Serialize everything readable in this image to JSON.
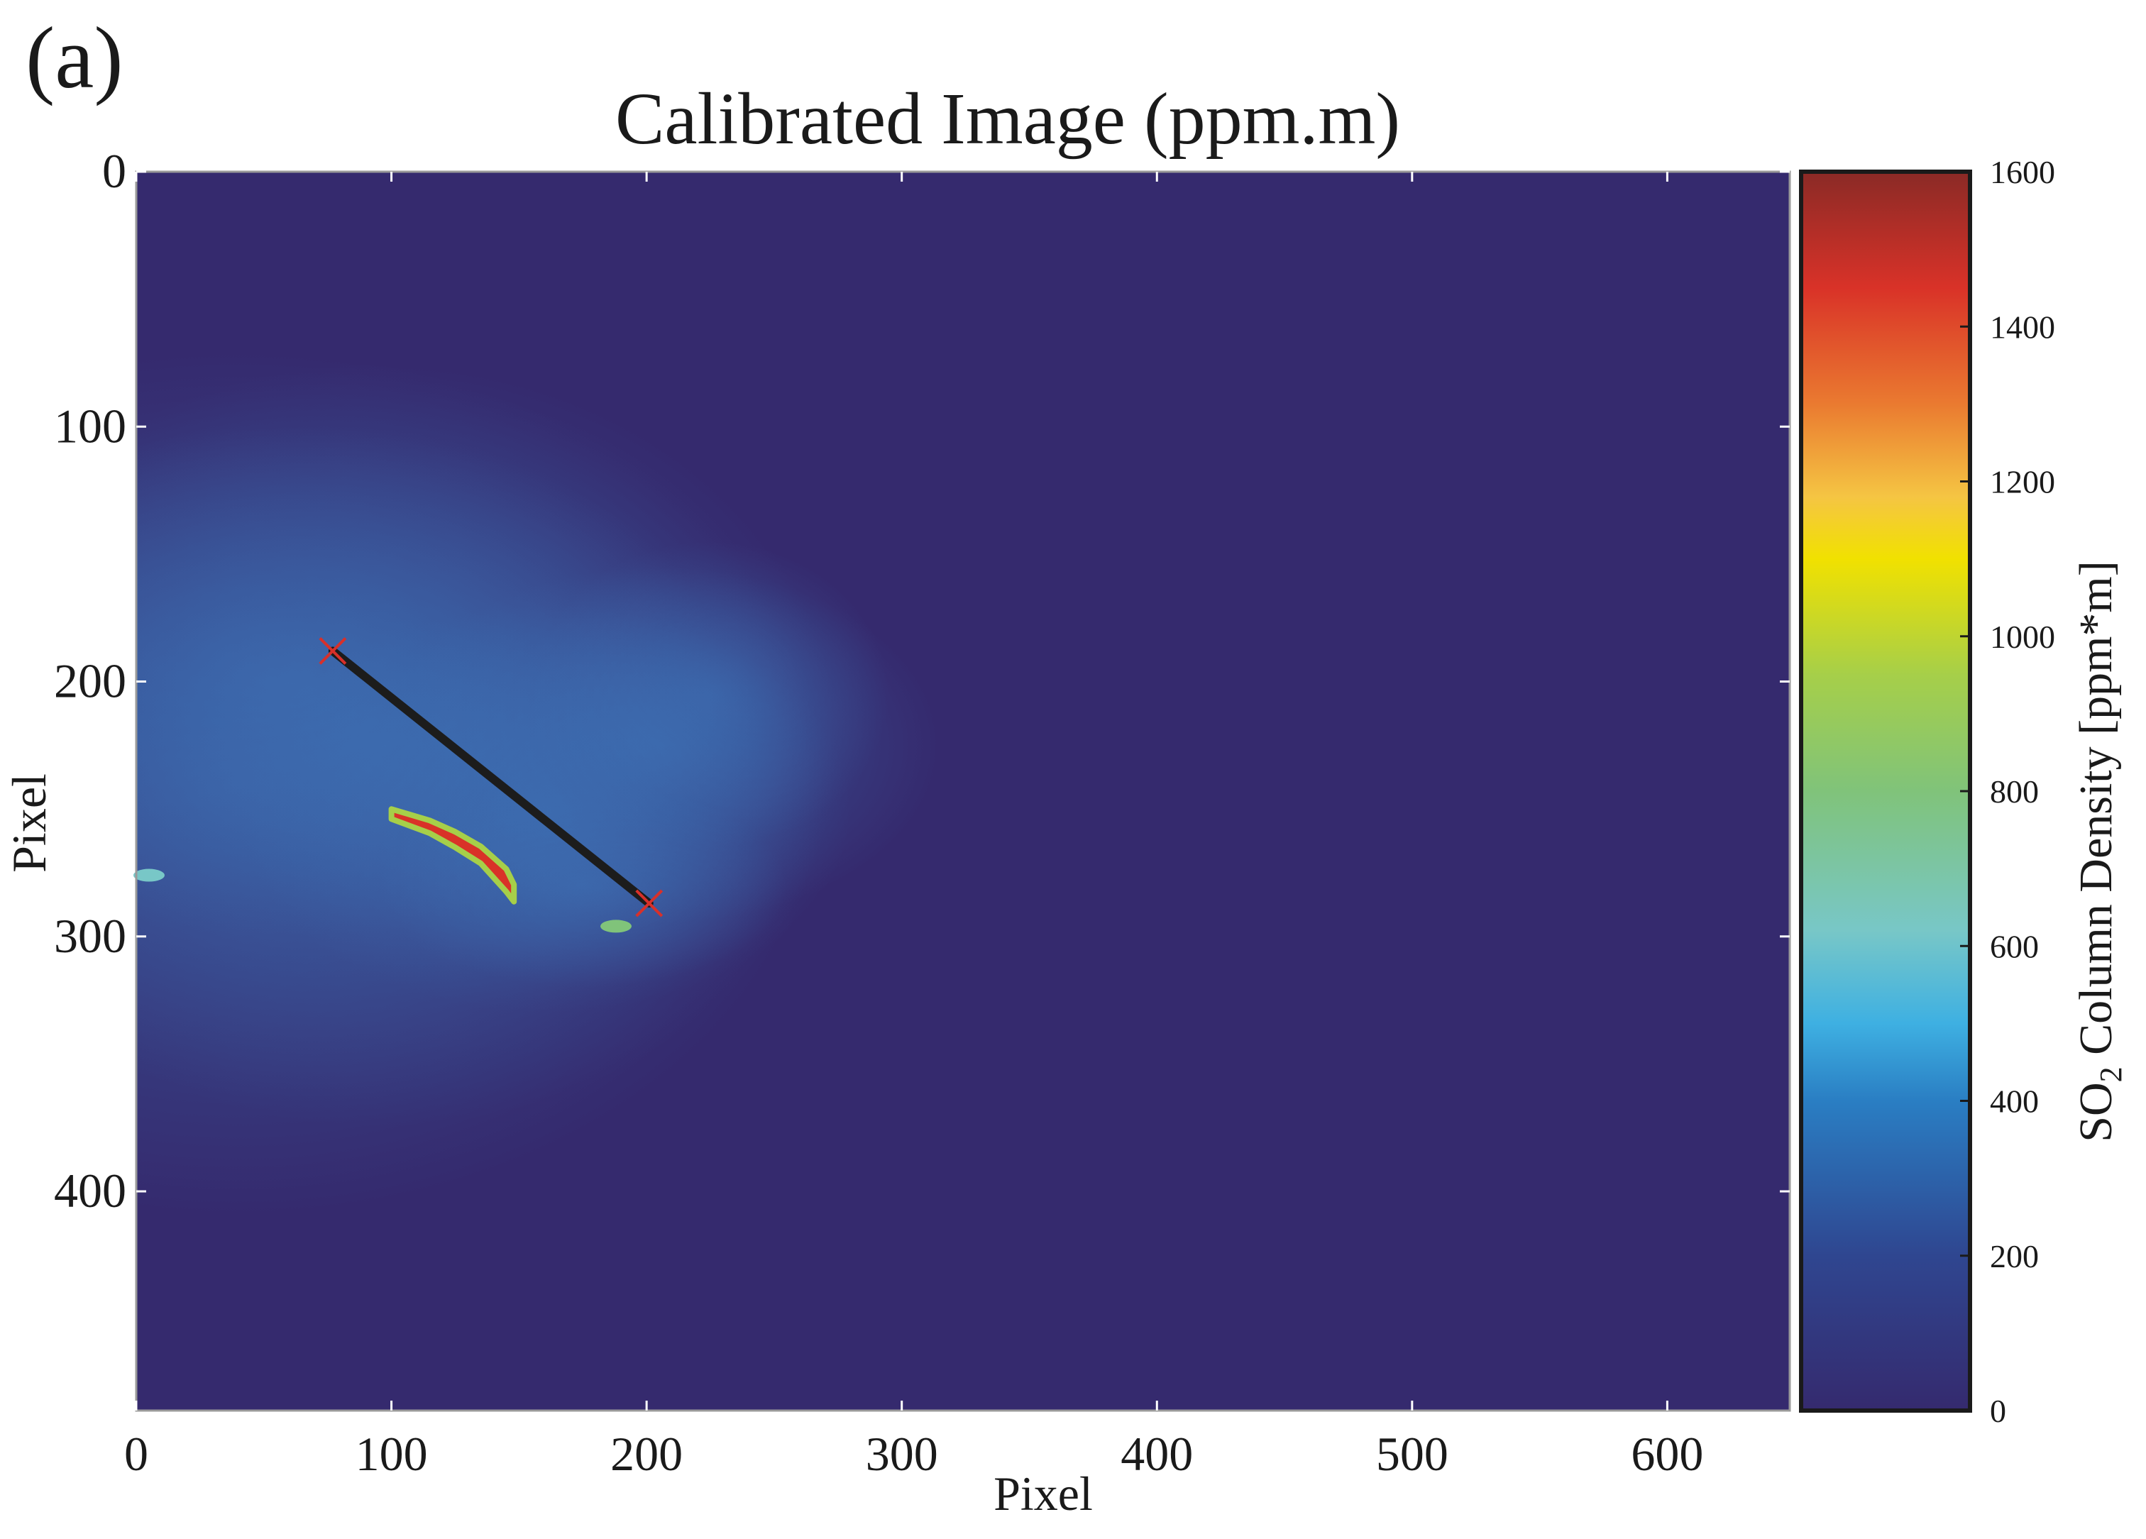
{
  "panel_label": "(a)",
  "chart_data": {
    "type": "heatmap",
    "title": "Calibrated Image (ppm.m)",
    "xlabel": "Pixel",
    "ylabel": "Pixel",
    "xlim": [
      0,
      648
    ],
    "ylim": [
      0,
      486
    ],
    "y_reversed": true,
    "xticks": [
      0,
      100,
      200,
      300,
      400,
      500,
      600
    ],
    "yticks": [
      0,
      100,
      200,
      300,
      400
    ],
    "background_value": 0,
    "profile_line": {
      "start": [
        77,
        188
      ],
      "end": [
        201,
        287
      ],
      "line_color": "#1c1c1c",
      "endpoint_marker_color": "#d8302a"
    },
    "high_concentration_region": [
      [
        100,
        252
      ],
      [
        115,
        257
      ],
      [
        125,
        262
      ],
      [
        135,
        268
      ],
      [
        145,
        278
      ],
      [
        148,
        283
      ]
    ],
    "isolated_features": [
      {
        "x": 5,
        "y": 276,
        "value": 650
      },
      {
        "x": 188,
        "y": 296,
        "value": 800
      }
    ],
    "colorbar": {
      "label_prefix": "SO",
      "label_subscript": "2",
      "label_suffix": " Column Density [ppm*m]",
      "range": [
        0,
        1600
      ],
      "ticks": [
        0,
        200,
        400,
        600,
        800,
        1000,
        1200,
        1400,
        1600
      ],
      "colormap": [
        {
          "v": 0,
          "color": "#352a6e"
        },
        {
          "v": 200,
          "color": "#2f4690"
        },
        {
          "v": 400,
          "color": "#2a7ec3"
        },
        {
          "v": 500,
          "color": "#3eb0e2"
        },
        {
          "v": 620,
          "color": "#78c7c7"
        },
        {
          "v": 800,
          "color": "#80c37a"
        },
        {
          "v": 950,
          "color": "#a6cf49"
        },
        {
          "v": 1100,
          "color": "#f1e100"
        },
        {
          "v": 1180,
          "color": "#f5c543"
        },
        {
          "v": 1300,
          "color": "#ea7a30"
        },
        {
          "v": 1450,
          "color": "#d93228"
        },
        {
          "v": 1600,
          "color": "#8a2a26"
        }
      ]
    }
  }
}
